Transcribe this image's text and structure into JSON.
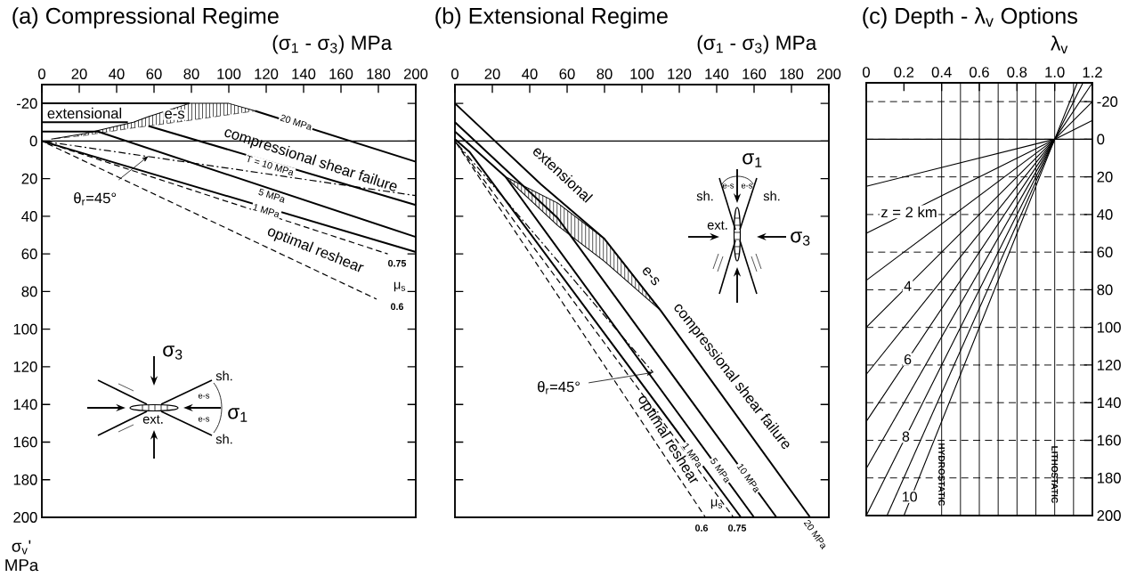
{
  "chart_data": [
    {
      "type": "line",
      "title": "(a)  Compressional Regime",
      "xlabel": "(σ$_{1}$ - σ$_{3}$)  MPa",
      "ylabel": "σ$_{v}$' MPa",
      "xlim": [
        0,
        200
      ],
      "ylim": [
        200,
        -30
      ],
      "xticks": [
        0,
        20,
        40,
        60,
        80,
        100,
        120,
        140,
        160,
        180,
        200
      ],
      "yticks": [
        -20,
        0,
        20,
        40,
        60,
        80,
        100,
        120,
        140,
        160,
        180,
        200
      ],
      "ref_lines": [
        {
          "axis": "y",
          "value": 0
        }
      ],
      "series": [
        {
          "x": [
            0,
            79
          ],
          "values": [
            -20,
            -20
          ],
          "color": "#000000",
          "line_style": "solid"
        },
        {
          "x": [
            114,
            200
          ],
          "values": [
            -16,
            11
          ],
          "color": "#000000",
          "line_style": "solid"
        },
        {
          "x": [
            0,
            46
          ],
          "values": [
            -10,
            -10
          ],
          "color": "#000000",
          "line_style": "solid"
        },
        {
          "x": [
            57,
            200
          ],
          "values": [
            -8,
            34
          ],
          "color": "#000000",
          "line_style": "solid"
        },
        {
          "x": [
            0,
            30,
            200
          ],
          "values": [
            -5,
            -5,
            51
          ],
          "color": "#000000",
          "line_style": "solid"
        },
        {
          "x": [
            0,
            200
          ],
          "values": [
            0,
            59
          ],
          "color": "#000000",
          "line_style": "solid"
        },
        {
          "x": [
            0,
            185
          ],
          "values": [
            0,
            60
          ],
          "color": "#000000",
          "line_style": "dashed"
        },
        {
          "x": [
            0,
            179
          ],
          "values": [
            0,
            84
          ],
          "color": "#000000",
          "line_style": "dashed"
        },
        {
          "x": [
            0,
            200
          ],
          "values": [
            0,
            29
          ],
          "color": "#000000",
          "line_style": "dashdot"
        },
        {
          "x": [
            5,
            23,
            49,
            57,
            79,
            100,
            114
          ],
          "values": [
            -1,
            -3,
            -7,
            -8,
            -11,
            -14,
            -16
          ],
          "color": "#000000",
          "line_style": "dashed"
        },
        {
          "x": [
            5,
            23,
            49,
            57,
            79,
            100,
            114
          ],
          "values": [
            -1,
            -4,
            -10,
            -13,
            -20,
            -20,
            -16
          ],
          "color": "#000000",
          "line_style": "solid"
        }
      ],
      "annotations": [
        "extensional",
        {
          "text": "e-s",
          "x": 71,
          "y": -14
        },
        {
          "text": "20 MPa",
          "x": 136,
          "y": -10
        },
        "compressional shear failure",
        {
          "text": "T = 10 MPa",
          "x": 122,
          "y": 13
        },
        {
          "text": "5 MPa",
          "x": 123,
          "y": 29
        },
        {
          "text": "1 MPa",
          "x": 120,
          "y": 37
        },
        {
          "text": "θ$_{r}$=45°",
          "x": 57,
          "y": 8
        },
        "optimal reshear",
        {
          "text": "0.75",
          "x": 190,
          "y": 65
        },
        "μ$_{s}$",
        {
          "text": "0.6",
          "x": 190,
          "y": 88
        },
        "σ$_{3}$",
        "σ$_{1}$",
        "sh.",
        "sh.",
        "e-s",
        "e-s",
        "ext."
      ]
    },
    {
      "type": "line",
      "title": "(b)  Extensional Regime",
      "xlabel": "(σ$_{1}$ - σ$_{3}$)  MPa",
      "xlim": [
        0,
        200
      ],
      "ylim": [
        200,
        -30
      ],
      "xticks": [
        0,
        20,
        40,
        60,
        80,
        100,
        120,
        140,
        160,
        180,
        200
      ],
      "yticks": [
        -20,
        0,
        20,
        40,
        60,
        80,
        100,
        120,
        140,
        160,
        180,
        200
      ],
      "tick_labels": "x",
      "ref_lines": [
        {
          "axis": "y",
          "value": 0
        }
      ],
      "series": [
        {
          "x": [
            0,
            46,
            80,
            110,
            190
          ],
          "values": [
            -20,
            23,
            52,
            90,
            200
          ],
          "color": "#000000",
          "line_style": "solid"
        },
        {
          "x": [
            0,
            55,
            172
          ],
          "values": [
            -10,
            41,
            200
          ],
          "color": "#000000",
          "line_style": "solid"
        },
        {
          "x": [
            0,
            27,
            160
          ],
          "values": [
            -5,
            19,
            200
          ],
          "color": "#000000",
          "line_style": "solid"
        },
        {
          "x": [
            0,
            8,
            153
          ],
          "values": [
            -1,
            6,
            200
          ],
          "color": "#000000",
          "line_style": "solid"
        },
        {
          "x": [
            0,
            149
          ],
          "values": [
            0,
            200
          ],
          "color": "#000000",
          "line_style": "dashed"
        },
        {
          "x": [
            0,
            134
          ],
          "values": [
            0,
            200
          ],
          "color": "#000000",
          "line_style": "dashed"
        },
        {
          "x": [
            0,
            106
          ],
          "values": [
            0,
            123
          ],
          "color": "#000000",
          "line_style": "dashdot"
        },
        {
          "x": [
            27,
            55,
            80,
            110
          ],
          "values": [
            19,
            45,
            64,
            90
          ],
          "color": "#000000",
          "line_style": "solid"
        },
        {
          "x": [
            27,
            55,
            80,
            110
          ],
          "values": [
            19,
            33,
            52,
            90
          ],
          "color": "#000000",
          "line_style": "solid"
        }
      ],
      "annotations": [
        {
          "text": "extensional",
          "x": 46,
          "y": 23
        },
        "e-s",
        "compressional shear failure",
        "20 MPa",
        {
          "text": "10 MPa",
          "x": 157,
          "y": 179
        },
        {
          "text": "5 MPa",
          "x": 142,
          "y": 175
        },
        {
          "text": "1 MPa",
          "x": 127,
          "y": 167
        },
        "optimal reshear",
        {
          "text": "θ$_{r}$=45°",
          "x": 106,
          "y": 123
        },
        "μ$_{s}$",
        "0.6",
        "0.75",
        "σ$_{1}$",
        "σ$_{3}$",
        "sh.",
        "sh.",
        "e-s",
        "e-s",
        "ext."
      ]
    },
    {
      "type": "line",
      "title": "(c)  Depth - λ$_{v}$ Options",
      "xlabel": "λ$_{v}$",
      "xlim": [
        0,
        1.2
      ],
      "ylim": [
        200,
        -30
      ],
      "xticks": [
        0,
        0.2,
        0.4,
        0.6,
        0.8,
        {
          "value": 1,
          "label": "1.0"
        },
        1.2
      ],
      "yticks": [
        -20,
        0,
        20,
        40,
        60,
        80,
        100,
        120,
        140,
        160,
        180,
        200
      ],
      "grid": "y",
      "ref_lines": [
        {
          "axis": "y",
          "value": 0
        },
        {
          "axis": "x",
          "value": 0.4,
          "label": "HYDROSTATIC"
        },
        {
          "axis": "x",
          "value": 0.5
        },
        {
          "axis": "x",
          "value": 0.6
        },
        {
          "axis": "x",
          "value": 0.7
        },
        {
          "axis": "x",
          "value": 0.8
        },
        {
          "axis": "x",
          "value": 0.9
        },
        {
          "axis": "x",
          "value": 1,
          "label": "LITHOSTATIC"
        },
        {
          "axis": "x",
          "value": 1.1
        }
      ],
      "series": [
        {
          "x": [
            0,
            1
          ],
          "values": [
            25,
            0
          ],
          "color": "#000000",
          "line_style": "solid"
        },
        {
          "x": [
            0,
            1,
            1.2
          ],
          "values": [
            50,
            0,
            -10
          ],
          "color": "#000000",
          "line_style": "solid"
        },
        {
          "x": [
            0,
            1
          ],
          "values": [
            75,
            0
          ],
          "color": "#000000",
          "line_style": "solid"
        },
        {
          "x": [
            0,
            1,
            1.2
          ],
          "values": [
            100,
            0,
            -20
          ],
          "color": "#000000",
          "line_style": "solid"
        },
        {
          "x": [
            0,
            1
          ],
          "values": [
            125,
            0
          ],
          "color": "#000000",
          "line_style": "solid"
        },
        {
          "x": [
            0,
            1,
            1.2
          ],
          "values": [
            150,
            0,
            -30
          ],
          "color": "#000000",
          "line_style": "solid"
        },
        {
          "x": [
            0,
            1
          ],
          "values": [
            175,
            0
          ],
          "color": "#000000",
          "line_style": "solid"
        },
        {
          "x": [
            0,
            1,
            1.15
          ],
          "values": [
            200,
            0,
            -30
          ],
          "color": "#000000",
          "line_style": "solid"
        },
        {
          "x": [
            0.11,
            1
          ],
          "values": [
            200,
            0
          ],
          "color": "#000000",
          "line_style": "solid"
        },
        {
          "x": [
            0.2,
            1,
            1.12
          ],
          "values": [
            200,
            0,
            -30
          ],
          "color": "#000000",
          "line_style": "solid"
        }
      ],
      "annotations": [
        "z = 2 km",
        {
          "text": "4",
          "x": 0.22,
          "y": 78
        },
        {
          "text": "6",
          "x": 0.22,
          "y": 117
        },
        {
          "text": "8",
          "x": 0.21,
          "y": 158
        },
        {
          "text": "10",
          "x": 0.23,
          "y": 190
        }
      ]
    }
  ]
}
